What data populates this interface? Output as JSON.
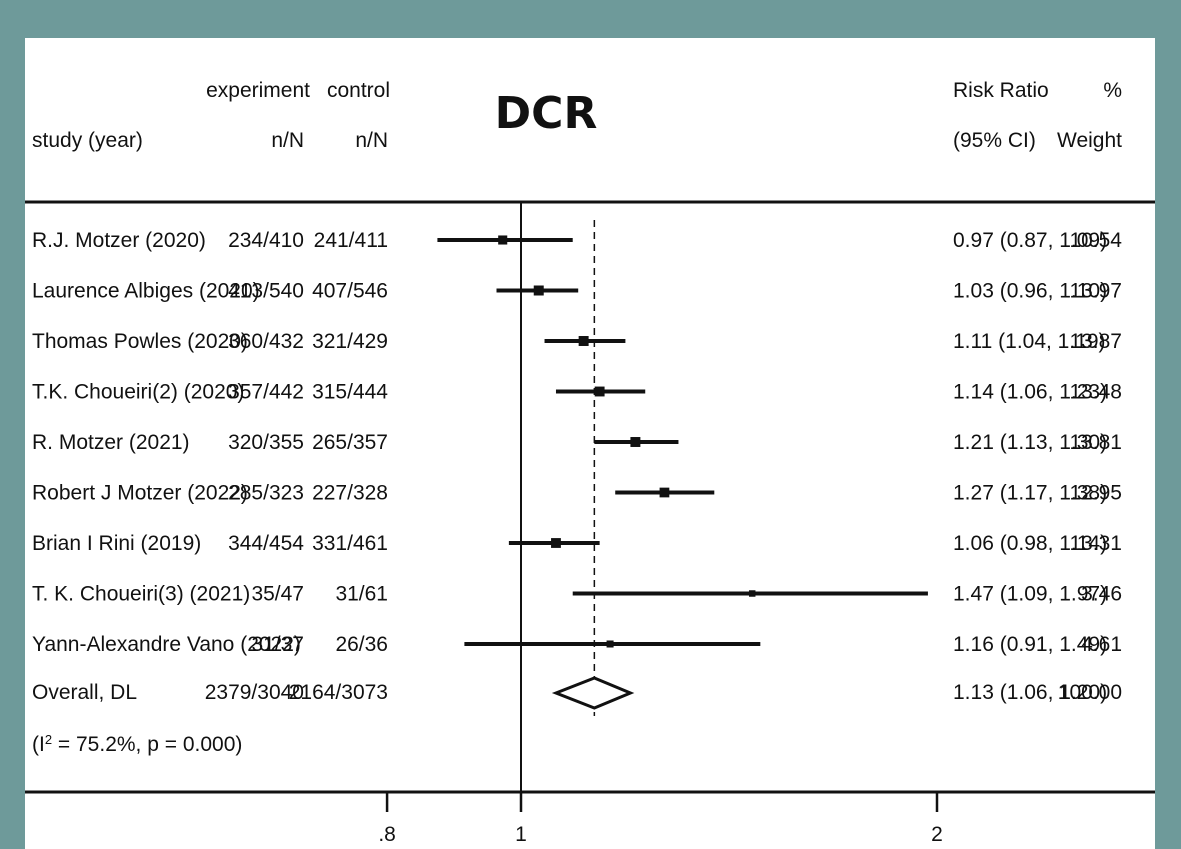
{
  "chart_data": {
    "type": "forest",
    "title": "DCR",
    "headers": {
      "study_line1": "",
      "study_line2": "study (year)",
      "exp_line1": "experiment",
      "exp_line2": "n/N",
      "ctrl_line1": "control",
      "ctrl_line2": "n/N",
      "rr_line1": "Risk Ratio",
      "rr_line2": "(95% CI)",
      "wt_line1": "%",
      "wt_line2": "Weight"
    },
    "studies": [
      {
        "label": "R.J. Motzer    (2020)",
        "experiment": "234/410",
        "control": "241/411",
        "rr": 0.97,
        "lo": 0.87,
        "hi": 1.09,
        "ci_text": "0.97 (0.87, 1.09)",
        "weight": 10.54,
        "weight_text": "10.54"
      },
      {
        "label": "Laurence Albiges (2020)",
        "experiment": "413/540",
        "control": "407/546",
        "rr": 1.03,
        "lo": 0.96,
        "hi": 1.1,
        "ci_text": "1.03 (0.96, 1.10)",
        "weight": 13.97,
        "weight_text": "13.97"
      },
      {
        "label": "Thomas Powles   (2020)",
        "experiment": "360/432",
        "control": "321/429",
        "rr": 1.11,
        "lo": 1.04,
        "hi": 1.19,
        "ci_text": "1.11 (1.04, 1.19)",
        "weight": 13.87,
        "weight_text": "13.87"
      },
      {
        "label": "T.K. Choueiri(2) (2020)",
        "experiment": "357/442",
        "control": "315/444",
        "rr": 1.14,
        "lo": 1.06,
        "hi": 1.23,
        "ci_text": "1.14 (1.06, 1.23)",
        "weight": 13.48,
        "weight_text": "13.48"
      },
      {
        "label": "R. Motzer (2021)",
        "experiment": "320/355",
        "control": "265/357",
        "rr": 1.21,
        "lo": 1.13,
        "hi": 1.3,
        "ci_text": "1.21 (1.13, 1.30)",
        "weight": 13.81,
        "weight_text": "13.81"
      },
      {
        "label": "Robert J Motzer (2022)",
        "experiment": "285/323",
        "control": "227/328",
        "rr": 1.27,
        "lo": 1.17,
        "hi": 1.38,
        "ci_text": "1.27 (1.17, 1.38)",
        "weight": 12.95,
        "weight_text": "12.95"
      },
      {
        "label": "Brian I Rini (2019)",
        "experiment": "344/454",
        "control": "331/461",
        "rr": 1.06,
        "lo": 0.98,
        "hi": 1.14,
        "ci_text": "1.06 (0.98, 1.14)",
        "weight": 13.31,
        "weight_text": "13.31"
      },
      {
        "label": "T. K. Choueiri(3) (2021)",
        "experiment": "35/47",
        "control": "31/61",
        "rr": 1.47,
        "lo": 1.09,
        "hi": 1.97,
        "ci_text": "1.47 (1.09, 1.97)",
        "weight": 3.46,
        "weight_text": "3.46"
      },
      {
        "label": "Yann-Alexandre Vano (2022)",
        "experiment": "31/37",
        "control": "26/36",
        "rr": 1.16,
        "lo": 0.91,
        "hi": 1.49,
        "ci_text": "1.16 (0.91, 1.49)",
        "weight": 4.61,
        "weight_text": "4.61"
      }
    ],
    "overall": {
      "label": "Overall, DL",
      "experiment": "2379/3040",
      "control": "2164/3073",
      "rr": 1.13,
      "lo": 1.06,
      "hi": 1.2,
      "ci_text": "1.13 (1.06, 1.20)",
      "weight_text": "100.00"
    },
    "heterogeneity": {
      "prefix": "(I",
      "sup": "2",
      "rest": " = 75.2%, p = 0.000)"
    },
    "x_axis": {
      "scale": "log",
      "null_value": 1,
      "ticks": [
        0.8,
        1,
        2
      ],
      "tick_labels": [
        ".8",
        "1",
        "2"
      ]
    },
    "colors": {
      "background": "#6e9a9a",
      "panel": "#ffffff",
      "ink": "#111111"
    }
  }
}
